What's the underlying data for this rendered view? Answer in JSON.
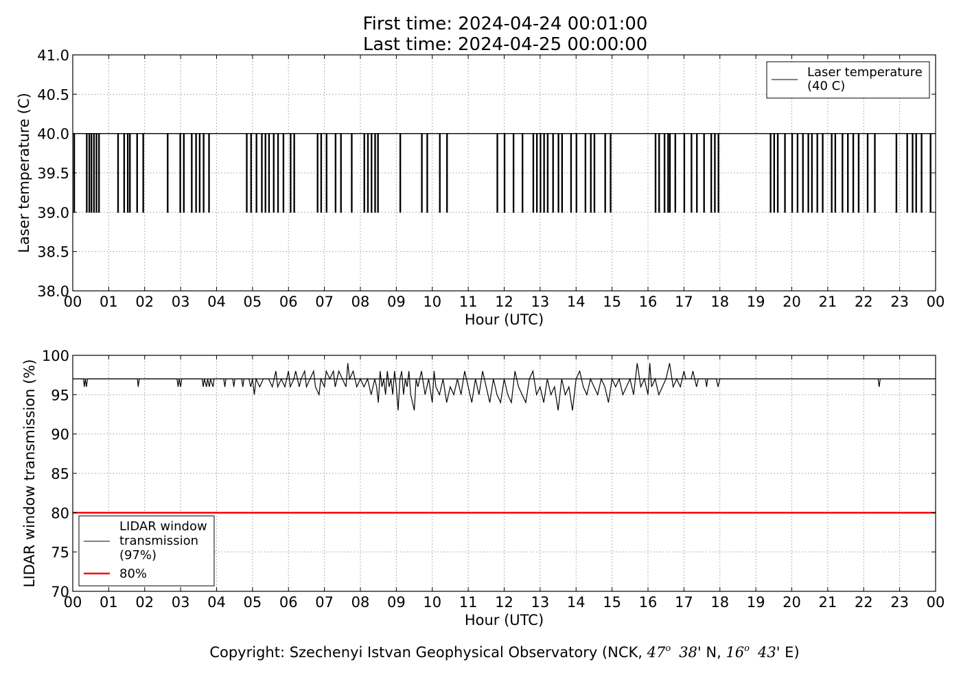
{
  "header": {
    "first_time": "First time: 2024-04-24 00:01:00",
    "last_time": "Last time: 2024-04-25 00:00:00"
  },
  "copyright": {
    "prefix": "Copyright: Szechenyi Istvan Geophysical Observatory (NCK, ",
    "lat_deg": "47",
    "lat_deg_sup": "o",
    "lat_min": "38",
    "lat_suffix": "' N, ",
    "lon_deg": "16",
    "lon_deg_sup": "o",
    "lon_min": "43",
    "lon_suffix": "' E)"
  },
  "colors": {
    "series": "#000000",
    "threshold": "#ff0000",
    "grid": "#999999"
  },
  "chart_data": [
    {
      "type": "line",
      "xlabel": "Hour (UTC)",
      "ylabel": "Laser temperature (C)",
      "xlim": [
        0,
        24
      ],
      "ylim": [
        38.0,
        41.0
      ],
      "x_ticks": [
        0,
        1,
        2,
        3,
        4,
        5,
        6,
        7,
        8,
        9,
        10,
        11,
        12,
        13,
        14,
        15,
        16,
        17,
        18,
        19,
        20,
        21,
        22,
        23,
        24
      ],
      "x_tick_labels": [
        "00",
        "01",
        "02",
        "03",
        "04",
        "05",
        "06",
        "07",
        "08",
        "09",
        "10",
        "11",
        "12",
        "13",
        "14",
        "15",
        "16",
        "17",
        "18",
        "19",
        "20",
        "21",
        "22",
        "23",
        "00"
      ],
      "y_ticks": [
        38.0,
        38.5,
        39.0,
        39.5,
        40.0,
        40.5,
        41.0
      ],
      "y_tick_labels": [
        "38.0",
        "38.5",
        "39.0",
        "39.5",
        "40.0",
        "40.5",
        "41.0"
      ],
      "grid": true,
      "legend_position": "top-right",
      "series": [
        {
          "name": "Laser temperature\n(40 C)",
          "baseline": 40.0,
          "dip_value": 39.0,
          "dip_hours": [
            0.03,
            0.38,
            0.45,
            0.51,
            0.58,
            0.65,
            0.72,
            1.25,
            1.42,
            1.52,
            1.58,
            1.78,
            1.95,
            2.63,
            2.98,
            3.08,
            3.3,
            3.42,
            3.52,
            3.63,
            3.78,
            4.83,
            4.95,
            5.1,
            5.25,
            5.35,
            5.45,
            5.58,
            5.7,
            5.85,
            6.05,
            6.15,
            6.8,
            6.9,
            7.05,
            7.3,
            7.45,
            7.75,
            8.1,
            8.2,
            8.3,
            8.4,
            8.48,
            9.1,
            9.7,
            9.85,
            10.2,
            10.4,
            11.8,
            12.0,
            12.25,
            12.5,
            12.8,
            12.9,
            13.0,
            13.1,
            13.2,
            13.35,
            13.5,
            13.6,
            13.85,
            14.0,
            14.25,
            14.4,
            14.5,
            14.8,
            14.95,
            16.2,
            16.3,
            16.45,
            16.55,
            16.6,
            16.75,
            17.0,
            17.2,
            17.35,
            17.55,
            17.75,
            17.85,
            17.95,
            19.4,
            19.5,
            19.6,
            19.8,
            20.0,
            20.15,
            20.3,
            20.45,
            20.55,
            20.7,
            20.85,
            21.1,
            21.2,
            21.4,
            21.55,
            21.7,
            21.85,
            22.1,
            22.3,
            22.9,
            23.2,
            23.35,
            23.45,
            23.6,
            23.85
          ]
        }
      ]
    },
    {
      "type": "line",
      "xlabel": "Hour (UTC)",
      "ylabel": "LIDAR window transmission (%)",
      "xlim": [
        0,
        24
      ],
      "ylim": [
        70,
        100
      ],
      "x_ticks": [
        0,
        1,
        2,
        3,
        4,
        5,
        6,
        7,
        8,
        9,
        10,
        11,
        12,
        13,
        14,
        15,
        16,
        17,
        18,
        19,
        20,
        21,
        22,
        23,
        24
      ],
      "x_tick_labels": [
        "00",
        "01",
        "02",
        "03",
        "04",
        "05",
        "06",
        "07",
        "08",
        "09",
        "10",
        "11",
        "12",
        "13",
        "14",
        "15",
        "16",
        "17",
        "18",
        "19",
        "20",
        "21",
        "22",
        "23",
        "00"
      ],
      "y_ticks": [
        70,
        75,
        80,
        85,
        90,
        95,
        100
      ],
      "y_tick_labels": [
        "70",
        "75",
        "80",
        "85",
        "90",
        "95",
        "100"
      ],
      "grid": true,
      "legend_position": "bottom-left",
      "series": [
        {
          "name": "LIDAR window\ntransmission\n(97%)",
          "baseline": 97,
          "points": [
            [
              0,
              97
            ],
            [
              0.3,
              97
            ],
            [
              0.32,
              96
            ],
            [
              0.35,
              97
            ],
            [
              0.38,
              96
            ],
            [
              0.41,
              97
            ],
            [
              1.8,
              97
            ],
            [
              1.82,
              96
            ],
            [
              1.85,
              97
            ],
            [
              2.9,
              97
            ],
            [
              2.93,
              96
            ],
            [
              2.96,
              97
            ],
            [
              3.0,
              96
            ],
            [
              3.03,
              97
            ],
            [
              3.6,
              97
            ],
            [
              3.63,
              96
            ],
            [
              3.66,
              97
            ],
            [
              3.72,
              96
            ],
            [
              3.75,
              97
            ],
            [
              3.8,
              96
            ],
            [
              3.83,
              97
            ],
            [
              3.9,
              96
            ],
            [
              3.93,
              97
            ],
            [
              4.2,
              97
            ],
            [
              4.23,
              96
            ],
            [
              4.26,
              97
            ],
            [
              4.45,
              97
            ],
            [
              4.48,
              96
            ],
            [
              4.51,
              97
            ],
            [
              4.7,
              97
            ],
            [
              4.73,
              96
            ],
            [
              4.76,
              97
            ],
            [
              4.9,
              97
            ],
            [
              4.95,
              96
            ],
            [
              5.0,
              97
            ],
            [
              5.05,
              95
            ],
            [
              5.1,
              97
            ],
            [
              5.2,
              96
            ],
            [
              5.3,
              97
            ],
            [
              5.45,
              97
            ],
            [
              5.55,
              96
            ],
            [
              5.65,
              98
            ],
            [
              5.7,
              96
            ],
            [
              5.8,
              97
            ],
            [
              5.9,
              96
            ],
            [
              6.0,
              98
            ],
            [
              6.05,
              96
            ],
            [
              6.15,
              97
            ],
            [
              6.2,
              98
            ],
            [
              6.3,
              96
            ],
            [
              6.35,
              97
            ],
            [
              6.45,
              98
            ],
            [
              6.5,
              96
            ],
            [
              6.6,
              97
            ],
            [
              6.7,
              98
            ],
            [
              6.75,
              96
            ],
            [
              6.85,
              95
            ],
            [
              6.9,
              97
            ],
            [
              7.0,
              96
            ],
            [
              7.05,
              98
            ],
            [
              7.15,
              97
            ],
            [
              7.25,
              98
            ],
            [
              7.3,
              96
            ],
            [
              7.4,
              98
            ],
            [
              7.5,
              97
            ],
            [
              7.6,
              96
            ],
            [
              7.65,
              99
            ],
            [
              7.7,
              97
            ],
            [
              7.8,
              98
            ],
            [
              7.9,
              96
            ],
            [
              8.0,
              97
            ],
            [
              8.1,
              96
            ],
            [
              8.2,
              97
            ],
            [
              8.3,
              95
            ],
            [
              8.4,
              97
            ],
            [
              8.45,
              96
            ],
            [
              8.5,
              94
            ],
            [
              8.55,
              98
            ],
            [
              8.6,
              96
            ],
            [
              8.65,
              97
            ],
            [
              8.7,
              95
            ],
            [
              8.75,
              98
            ],
            [
              8.8,
              96
            ],
            [
              8.85,
              97
            ],
            [
              8.9,
              95
            ],
            [
              8.95,
              98
            ],
            [
              9.0,
              96
            ],
            [
              9.05,
              93
            ],
            [
              9.1,
              97
            ],
            [
              9.15,
              98
            ],
            [
              9.2,
              95
            ],
            [
              9.25,
              97
            ],
            [
              9.3,
              96
            ],
            [
              9.35,
              98
            ],
            [
              9.4,
              95
            ],
            [
              9.5,
              93
            ],
            [
              9.55,
              97
            ],
            [
              9.6,
              96
            ],
            [
              9.7,
              98
            ],
            [
              9.8,
              95
            ],
            [
              9.9,
              97
            ],
            [
              10.0,
              94
            ],
            [
              10.05,
              98
            ],
            [
              10.1,
              96
            ],
            [
              10.2,
              95
            ],
            [
              10.3,
              97
            ],
            [
              10.4,
              94
            ],
            [
              10.5,
              96
            ],
            [
              10.6,
              95
            ],
            [
              10.7,
              97
            ],
            [
              10.8,
              95
            ],
            [
              10.9,
              98
            ],
            [
              11.0,
              96
            ],
            [
              11.1,
              94
            ],
            [
              11.2,
              97
            ],
            [
              11.3,
              95
            ],
            [
              11.4,
              98
            ],
            [
              11.5,
              96
            ],
            [
              11.6,
              94
            ],
            [
              11.7,
              97
            ],
            [
              11.8,
              95
            ],
            [
              11.9,
              94
            ],
            [
              12.0,
              97
            ],
            [
              12.1,
              95
            ],
            [
              12.2,
              94
            ],
            [
              12.3,
              98
            ],
            [
              12.4,
              96
            ],
            [
              12.5,
              95
            ],
            [
              12.6,
              94
            ],
            [
              12.7,
              97
            ],
            [
              12.8,
              98
            ],
            [
              12.9,
              95
            ],
            [
              13.0,
              96
            ],
            [
              13.1,
              94
            ],
            [
              13.2,
              97
            ],
            [
              13.3,
              95
            ],
            [
              13.4,
              96
            ],
            [
              13.5,
              93
            ],
            [
              13.6,
              97
            ],
            [
              13.7,
              95
            ],
            [
              13.8,
              96
            ],
            [
              13.9,
              93
            ],
            [
              14.0,
              97
            ],
            [
              14.1,
              98
            ],
            [
              14.2,
              96
            ],
            [
              14.3,
              95
            ],
            [
              14.4,
              97
            ],
            [
              14.5,
              96
            ],
            [
              14.6,
              95
            ],
            [
              14.7,
              97
            ],
            [
              14.8,
              96
            ],
            [
              14.9,
              94
            ],
            [
              15.0,
              97
            ],
            [
              15.1,
              96
            ],
            [
              15.2,
              97
            ],
            [
              15.3,
              95
            ],
            [
              15.4,
              96
            ],
            [
              15.5,
              97
            ],
            [
              15.6,
              95
            ],
            [
              15.7,
              99
            ],
            [
              15.8,
              96
            ],
            [
              15.9,
              97
            ],
            [
              16.0,
              95
            ],
            [
              16.05,
              99
            ],
            [
              16.1,
              96
            ],
            [
              16.2,
              97
            ],
            [
              16.3,
              95
            ],
            [
              16.4,
              96
            ],
            [
              16.5,
              97
            ],
            [
              16.6,
              99
            ],
            [
              16.7,
              96
            ],
            [
              16.8,
              97
            ],
            [
              16.9,
              96
            ],
            [
              17.0,
              98
            ],
            [
              17.05,
              97
            ],
            [
              17.2,
              97
            ],
            [
              17.25,
              98
            ],
            [
              17.3,
              97
            ],
            [
              17.35,
              96
            ],
            [
              17.4,
              97
            ],
            [
              17.6,
              97
            ],
            [
              17.63,
              96
            ],
            [
              17.66,
              97
            ],
            [
              17.9,
              97
            ],
            [
              17.95,
              96
            ],
            [
              18.0,
              97
            ],
            [
              22.4,
              97
            ],
            [
              22.43,
              96
            ],
            [
              22.46,
              97
            ],
            [
              24,
              97
            ]
          ]
        },
        {
          "name": "80%",
          "points": [
            [
              0,
              80
            ],
            [
              24,
              80
            ]
          ]
        }
      ]
    }
  ]
}
